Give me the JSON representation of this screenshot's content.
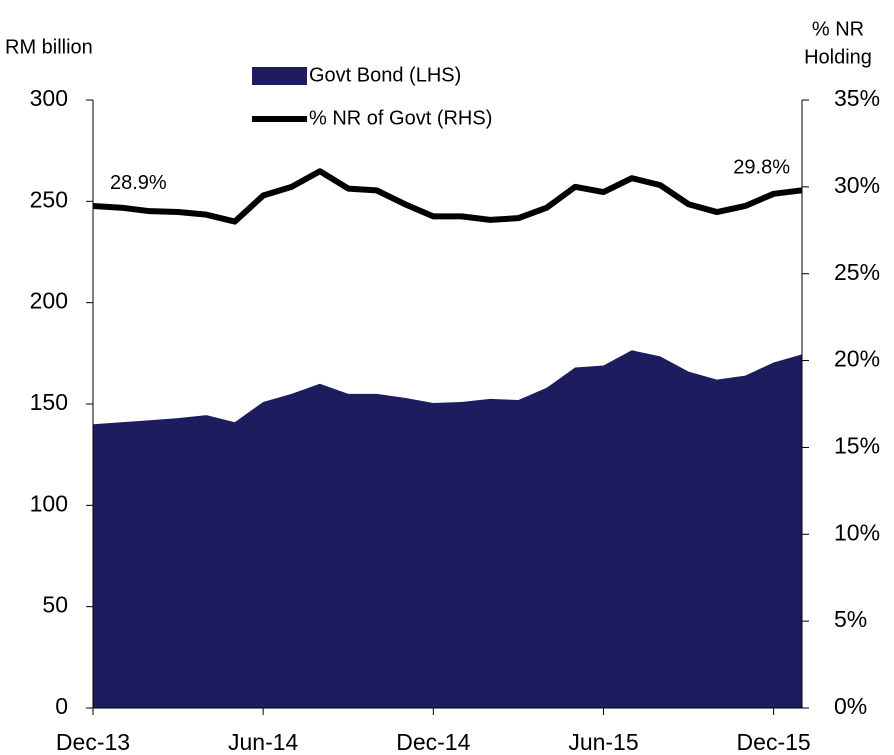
{
  "chart_data": {
    "type": "area_line",
    "y_label": "RM billion",
    "y2_label": [
      "% NR",
      "Holding"
    ],
    "categories": [
      "Dec-13",
      null,
      null,
      null,
      null,
      null,
      "Jun-14",
      null,
      null,
      null,
      null,
      null,
      "Dec-14",
      null,
      null,
      null,
      null,
      null,
      "Jun-15",
      null,
      null,
      null,
      null,
      null,
      "Dec-15",
      null
    ],
    "series": [
      {
        "name": "Govt Bond (LHS)",
        "type": "area",
        "color": "#1c1c5e",
        "axis": "y",
        "values": [
          140,
          141,
          142,
          143,
          144.5,
          141,
          151,
          155,
          160,
          155,
          155,
          153,
          150.5,
          151,
          152.5,
          152,
          158,
          168,
          169,
          176.5,
          173.5,
          166,
          162,
          164,
          170.5,
          174.5
        ]
      },
      {
        "name": "% NR of Govt (RHS)",
        "type": "line",
        "color": "#000000",
        "axis": "y2",
        "values": [
          28.9,
          28.8,
          28.6,
          28.55,
          28.4,
          28.0,
          29.5,
          30.0,
          30.9,
          29.9,
          29.8,
          29.0,
          28.3,
          28.3,
          28.1,
          28.2,
          28.8,
          30.0,
          29.7,
          30.5,
          30.1,
          29.0,
          28.55,
          28.9,
          29.6,
          29.8
        ],
        "value_labels": [
          "28.9%",
          null,
          null,
          null,
          null,
          null,
          null,
          null,
          null,
          null,
          null,
          null,
          null,
          null,
          null,
          null,
          null,
          null,
          null,
          null,
          null,
          null,
          null,
          null,
          null,
          "29.8%"
        ]
      }
    ],
    "ylim": [
      0,
      300
    ],
    "yticks": [
      0,
      50,
      100,
      150,
      200,
      250,
      300
    ],
    "y2lim": [
      0,
      35
    ],
    "y2ticks": [
      {
        "value": 0,
        "label": "0%"
      },
      {
        "value": 5,
        "label": "5%"
      },
      {
        "value": 10,
        "label": "10%"
      },
      {
        "value": 15,
        "label": "15%"
      },
      {
        "value": 20,
        "label": "20%"
      },
      {
        "value": 25,
        "label": "25%"
      },
      {
        "value": 30,
        "label": "30%"
      },
      {
        "value": 35,
        "label": "35%"
      }
    ],
    "legend": "top",
    "grid": false
  }
}
